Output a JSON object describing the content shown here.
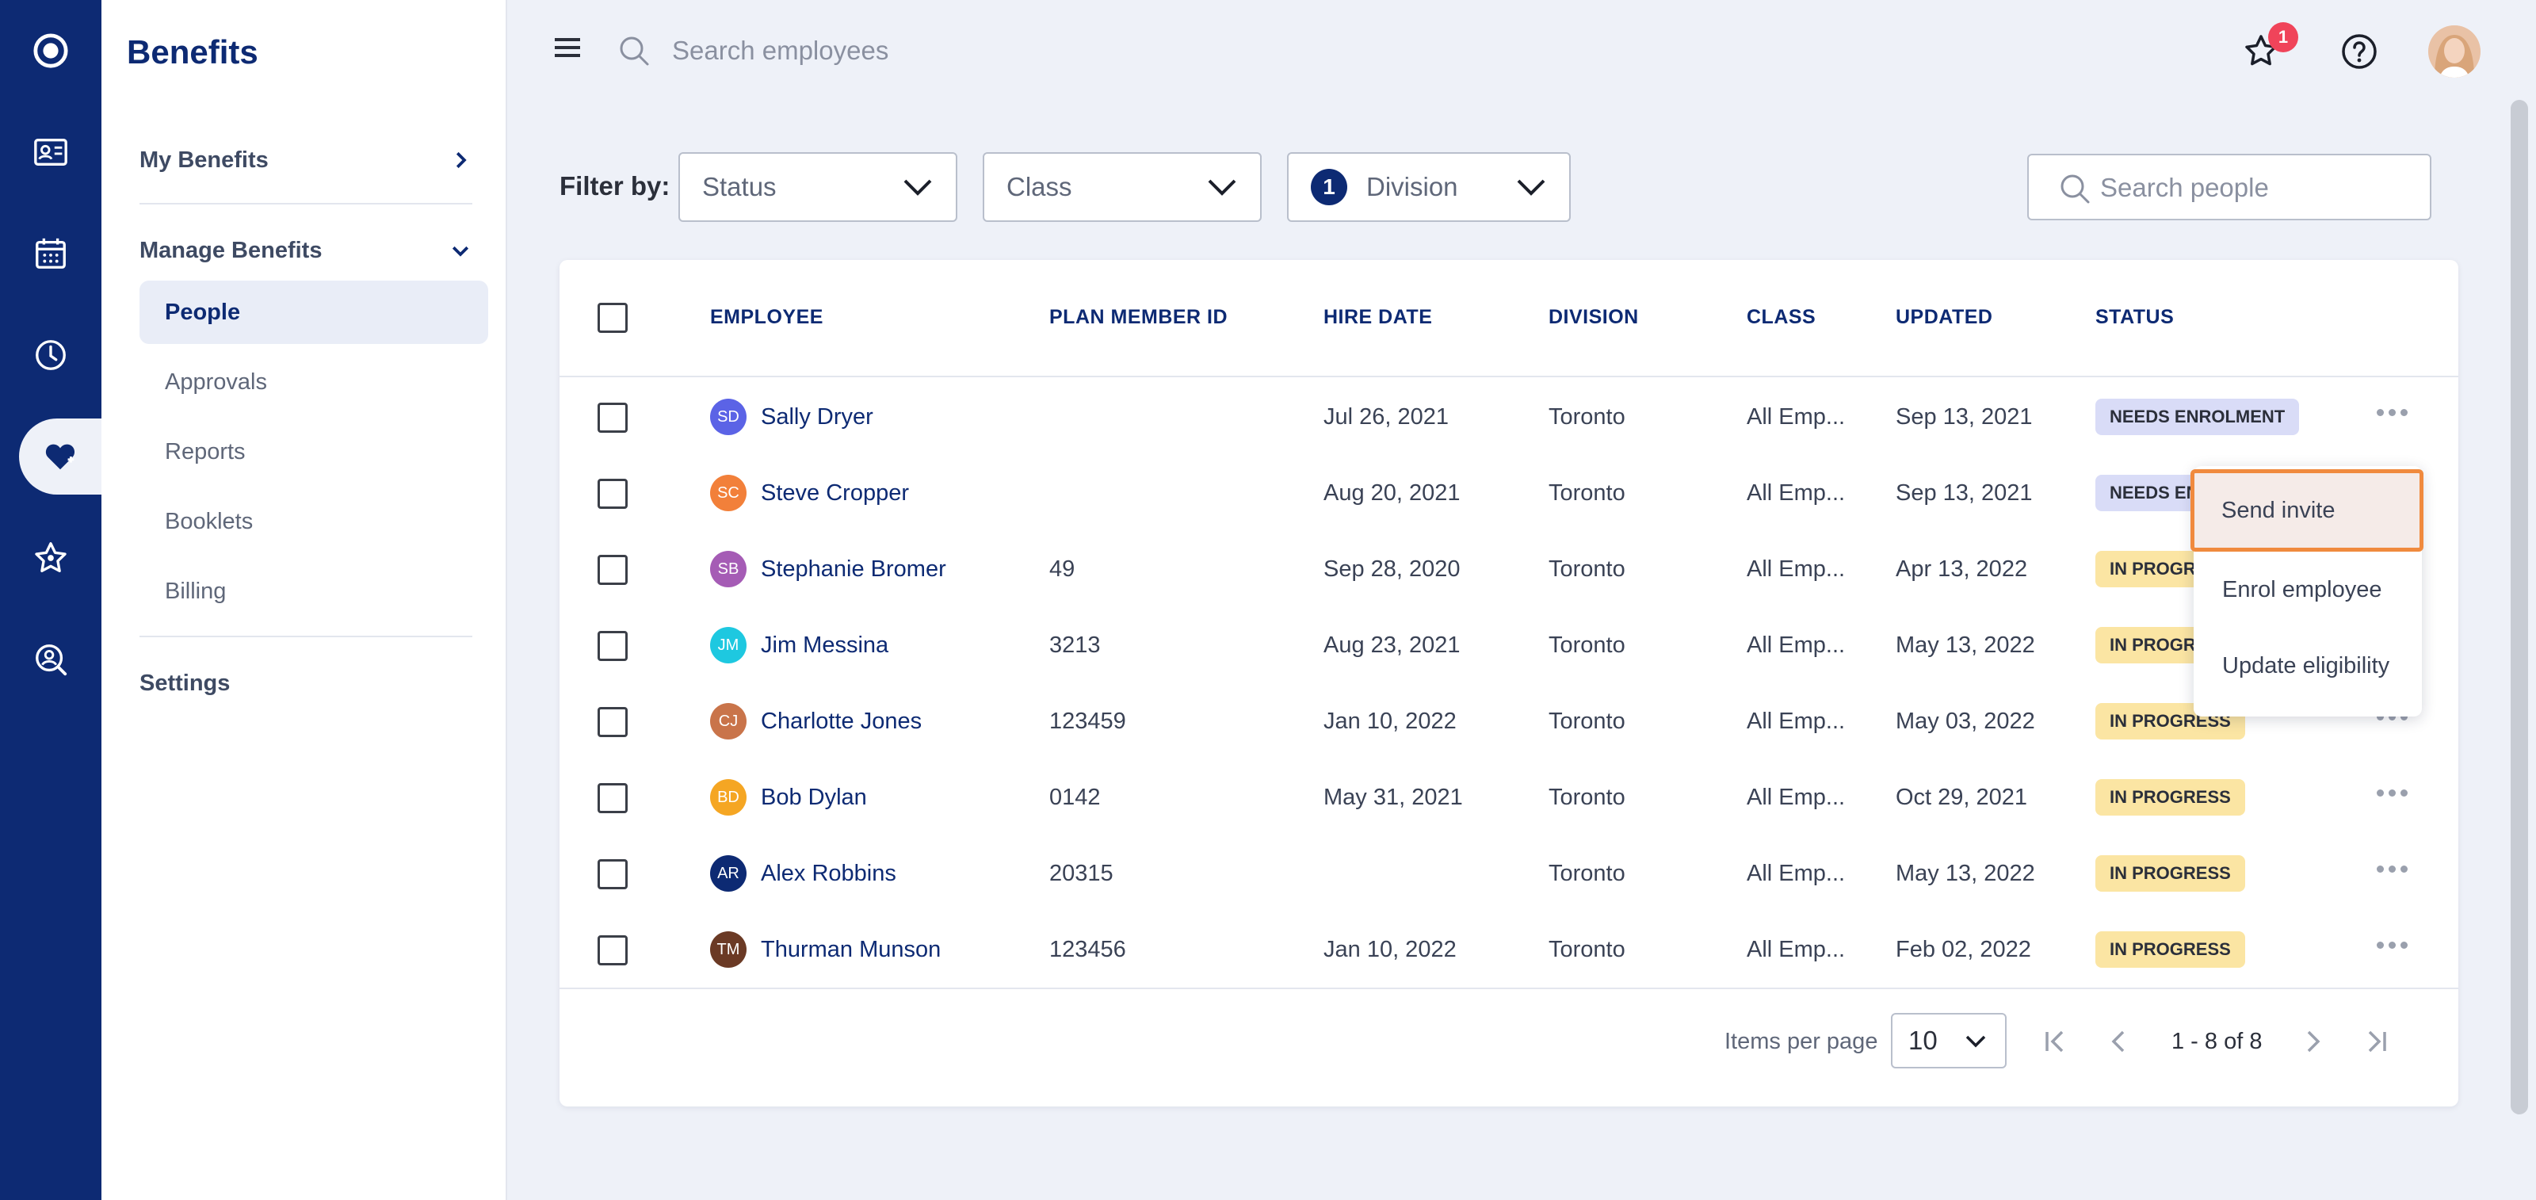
{
  "app": {
    "title": "Benefits"
  },
  "rail": {
    "icons": [
      "logo-icon",
      "id-card-icon",
      "calendar-icon",
      "clock-icon",
      "heart-icon",
      "star-icon",
      "search-person-icon"
    ],
    "active": "heart-icon"
  },
  "sidenav": {
    "my_benefits": "My Benefits",
    "manage_benefits": "Manage Benefits",
    "items": [
      {
        "label": "People",
        "active": true
      },
      {
        "label": "Approvals",
        "active": false
      },
      {
        "label": "Reports",
        "active": false
      },
      {
        "label": "Booklets",
        "active": false
      },
      {
        "label": "Billing",
        "active": false
      }
    ],
    "settings": "Settings"
  },
  "topbar": {
    "search_placeholder": "Search employees",
    "notification_count": "1"
  },
  "filters": {
    "label": "Filter by:",
    "status": "Status",
    "class": "Class",
    "division": "Division",
    "division_count": "1",
    "search_placeholder": "Search people"
  },
  "table": {
    "columns": [
      "EMPLOYEE",
      "PLAN MEMBER ID",
      "HIRE DATE",
      "DIVISION",
      "CLASS",
      "UPDATED",
      "STATUS"
    ],
    "rows": [
      {
        "initials": "SD",
        "avatar_color": "#5b63e6",
        "name": "Sally Dryer",
        "member_id": "",
        "hire_date": "Jul 26, 2021",
        "division": "Toronto",
        "class": "All Emp...",
        "updated": "Sep 13, 2021",
        "status": "NEEDS ENROLMENT",
        "status_color": "#d9dcf7"
      },
      {
        "initials": "SC",
        "avatar_color": "#f2803a",
        "name": "Steve Cropper",
        "member_id": "",
        "hire_date": "Aug 20, 2021",
        "division": "Toronto",
        "class": "All Emp...",
        "updated": "Sep 13, 2021",
        "status": "NEEDS EN",
        "status_color": "#d9dcf7"
      },
      {
        "initials": "SB",
        "avatar_color": "#a55cb5",
        "name": "Stephanie Bromer",
        "member_id": "49",
        "hire_date": "Sep 28, 2020",
        "division": "Toronto",
        "class": "All Emp...",
        "updated": "Apr 13, 2022",
        "status": "IN PROGRE",
        "status_color": "#fbe5a3"
      },
      {
        "initials": "JM",
        "avatar_color": "#1ec8e0",
        "name": "Jim Messina",
        "member_id": "3213",
        "hire_date": "Aug 23, 2021",
        "division": "Toronto",
        "class": "All Emp...",
        "updated": "May 13, 2022",
        "status": "IN PROGR",
        "status_color": "#fbe5a3"
      },
      {
        "initials": "CJ",
        "avatar_color": "#c9744a",
        "name": "Charlotte Jones",
        "member_id": "123459",
        "hire_date": "Jan 10, 2022",
        "division": "Toronto",
        "class": "All Emp...",
        "updated": "May 03, 2022",
        "status": "IN PROGRESS",
        "status_color": "#fbe5a3"
      },
      {
        "initials": "BD",
        "avatar_color": "#f5a623",
        "name": "Bob Dylan",
        "member_id": "0142",
        "hire_date": "May 31, 2021",
        "division": "Toronto",
        "class": "All Emp...",
        "updated": "Oct 29, 2021",
        "status": "IN PROGRESS",
        "status_color": "#fbe5a3"
      },
      {
        "initials": "AR",
        "avatar_color": "#0d2a73",
        "name": "Alex Robbins",
        "member_id": "20315",
        "hire_date": "",
        "division": "Toronto",
        "class": "All Emp...",
        "updated": "May 13, 2022",
        "status": "IN PROGRESS",
        "status_color": "#fbe5a3"
      },
      {
        "initials": "TM",
        "avatar_color": "#6b3a25",
        "name": "Thurman Munson",
        "member_id": "123456",
        "hire_date": "Jan 10, 2022",
        "division": "Toronto",
        "class": "All Emp...",
        "updated": "Feb 02, 2022",
        "status": "IN PROGRESS",
        "status_color": "#fbe5a3"
      }
    ]
  },
  "context_menu": {
    "items": [
      "Send invite",
      "Enrol employee",
      "Update eligibility"
    ],
    "highlighted": "Send invite"
  },
  "pagination": {
    "items_per_page_label": "Items per page",
    "items_per_page": "10",
    "range": "1 - 8 of 8"
  }
}
